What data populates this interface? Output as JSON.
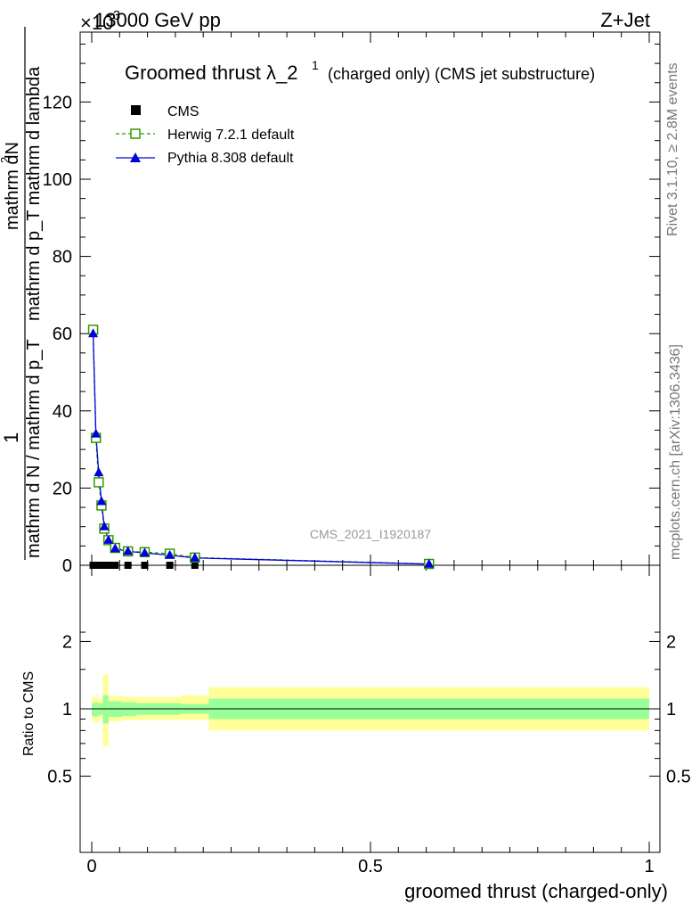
{
  "header": {
    "exponent_prefix": "×10",
    "exponent_power": "−3",
    "beam_label": "13000 GeV pp",
    "process_label": "Z+Jet"
  },
  "side_labels": {
    "rivet": "Rivet 3.1.10, ≥ 2.8M events",
    "mcplots": "mcplots.cern.ch [arXiv:1306.3436]"
  },
  "main_plot": {
    "title_main": "Groomed thrust",
    "title_lambda": "λ_2",
    "title_superscript": "1",
    "title_suffix": "(charged only) (CMS jet substructure)",
    "watermark": "CMS_2021_I1920187",
    "ylabel_numerator_1": "mathrm d",
    "ylabel_numerator_2": "2",
    "ylabel_numerator_3": "N",
    "ylabel_numerator_full": "mathrm dN",
    "ylabel_denominator": "mathrm d p_T mathrm d lambda",
    "ylabel_prefix_one": "1",
    "ylabel_prefix_den": "mathrm d N / mathrm d p_T",
    "yticks": [
      "0",
      "20",
      "40",
      "60",
      "80",
      "100",
      "120"
    ]
  },
  "legend": {
    "cms": "CMS",
    "herwig": "Herwig 7.2.1 default",
    "pythia": "Pythia 8.308 default"
  },
  "ratio_plot": {
    "ylabel": "Ratio to CMS",
    "yticks": [
      "0.5",
      "1",
      "2"
    ]
  },
  "x_axis": {
    "label": "groomed thrust (charged-only)",
    "ticks": [
      "0",
      "0.5",
      "1"
    ]
  },
  "colors": {
    "herwig": "#339900",
    "pythia": "#0000dd",
    "band_inner": "#99ff99",
    "band_outer": "#ffff99"
  },
  "chart_data": {
    "type": "line",
    "xlim": [
      0,
      1
    ],
    "ylim": [
      0,
      138
    ],
    "y_scale_factor": "1e-3",
    "series": [
      {
        "name": "CMS",
        "marker": "filled-square",
        "x": [
          0.0025,
          0.0075,
          0.0125,
          0.0175,
          0.0225,
          0.03,
          0.042,
          0.065,
          0.095,
          0.14,
          0.185,
          0.605
        ],
        "y": [
          0,
          0,
          0,
          0,
          0,
          0,
          0,
          0,
          0,
          0,
          0,
          0
        ]
      },
      {
        "name": "Herwig 7.2.1 default",
        "marker": "open-square",
        "x": [
          0.0025,
          0.0075,
          0.0125,
          0.0175,
          0.0225,
          0.03,
          0.042,
          0.065,
          0.095,
          0.14,
          0.185,
          0.605
        ],
        "y": [
          61,
          33,
          21.5,
          15.5,
          9.5,
          6.5,
          4.5,
          3.6,
          3.4,
          3.0,
          2.0,
          0.35
        ]
      },
      {
        "name": "Pythia 8.308 default",
        "marker": "filled-triangle",
        "x": [
          0.0025,
          0.0075,
          0.0125,
          0.0175,
          0.0225,
          0.03,
          0.042,
          0.065,
          0.095,
          0.14,
          0.185,
          0.605
        ],
        "y": [
          60,
          34,
          24,
          16.5,
          10,
          6.5,
          4.3,
          3.6,
          3.2,
          2.6,
          1.9,
          0.3
        ]
      }
    ],
    "ratio": {
      "ylabel": "Ratio to CMS",
      "ylim": [
        0.4,
        2.4
      ],
      "log_scale": true,
      "bins": [
        {
          "x0": 0.0,
          "x1": 0.005,
          "inner": [
            0.93,
            1.06
          ],
          "outer": [
            0.88,
            1.13
          ]
        },
        {
          "x0": 0.005,
          "x1": 0.01,
          "inner": [
            0.92,
            1.07
          ],
          "outer": [
            0.86,
            1.15
          ]
        },
        {
          "x0": 0.01,
          "x1": 0.015,
          "inner": [
            0.93,
            1.06
          ],
          "outer": [
            0.88,
            1.12
          ]
        },
        {
          "x0": 0.015,
          "x1": 0.02,
          "inner": [
            0.94,
            1.06
          ],
          "outer": [
            0.9,
            1.1
          ]
        },
        {
          "x0": 0.02,
          "x1": 0.03,
          "inner": [
            0.86,
            1.15
          ],
          "outer": [
            0.68,
            1.42
          ]
        },
        {
          "x0": 0.03,
          "x1": 0.055,
          "inner": [
            0.92,
            1.08
          ],
          "outer": [
            0.88,
            1.14
          ]
        },
        {
          "x0": 0.055,
          "x1": 0.08,
          "inner": [
            0.93,
            1.07
          ],
          "outer": [
            0.89,
            1.13
          ]
        },
        {
          "x0": 0.08,
          "x1": 0.16,
          "inner": [
            0.94,
            1.06
          ],
          "outer": [
            0.89,
            1.13
          ]
        },
        {
          "x0": 0.16,
          "x1": 0.21,
          "inner": [
            0.95,
            1.05
          ],
          "outer": [
            0.89,
            1.15
          ]
        },
        {
          "x0": 0.21,
          "x1": 1.0,
          "inner": [
            0.9,
            1.11
          ],
          "outer": [
            0.8,
            1.25
          ]
        }
      ]
    }
  }
}
